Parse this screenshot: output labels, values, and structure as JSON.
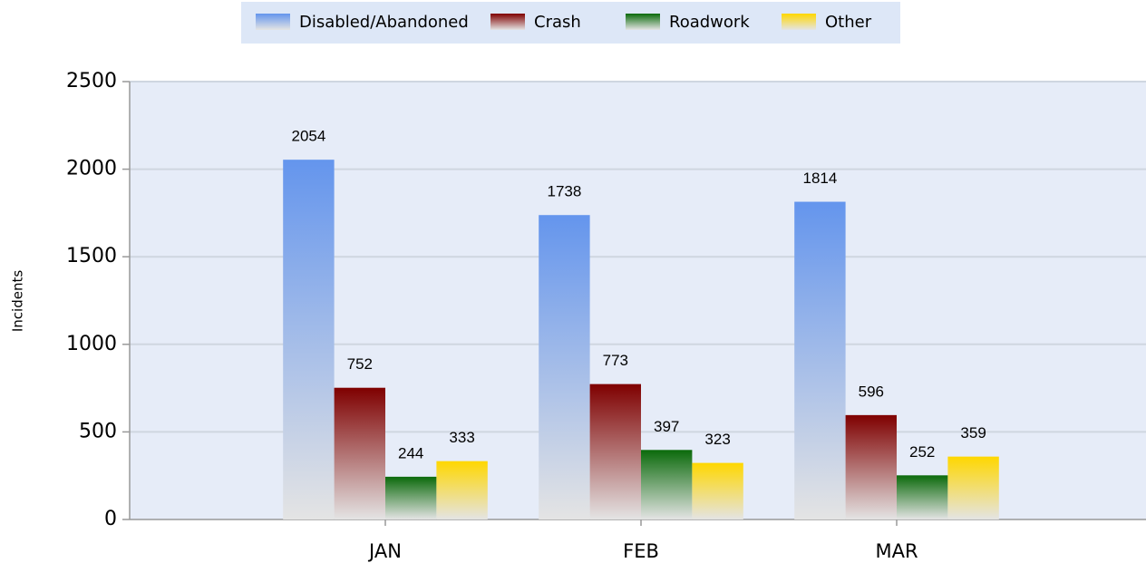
{
  "chart_data": {
    "type": "bar",
    "y_axis_label": "Incidents",
    "categories": [
      "JAN",
      "FEB",
      "MAR"
    ],
    "series": [
      {
        "name": "Disabled/Abandoned",
        "color": "#6495ed",
        "values": [
          2054,
          1738,
          1814
        ]
      },
      {
        "name": "Crash",
        "color": "#7f0000",
        "values": [
          752,
          773,
          596
        ]
      },
      {
        "name": "Roadwork",
        "color": "#0b6a0b",
        "values": [
          244,
          397,
          252
        ]
      },
      {
        "name": "Other",
        "color": "#ffd700",
        "values": [
          333,
          323,
          359
        ]
      }
    ],
    "ylim": [
      0,
      2500
    ],
    "yticks": [
      0,
      500,
      1000,
      1500,
      2000,
      2500
    ],
    "grid": true,
    "legend": "top"
  }
}
